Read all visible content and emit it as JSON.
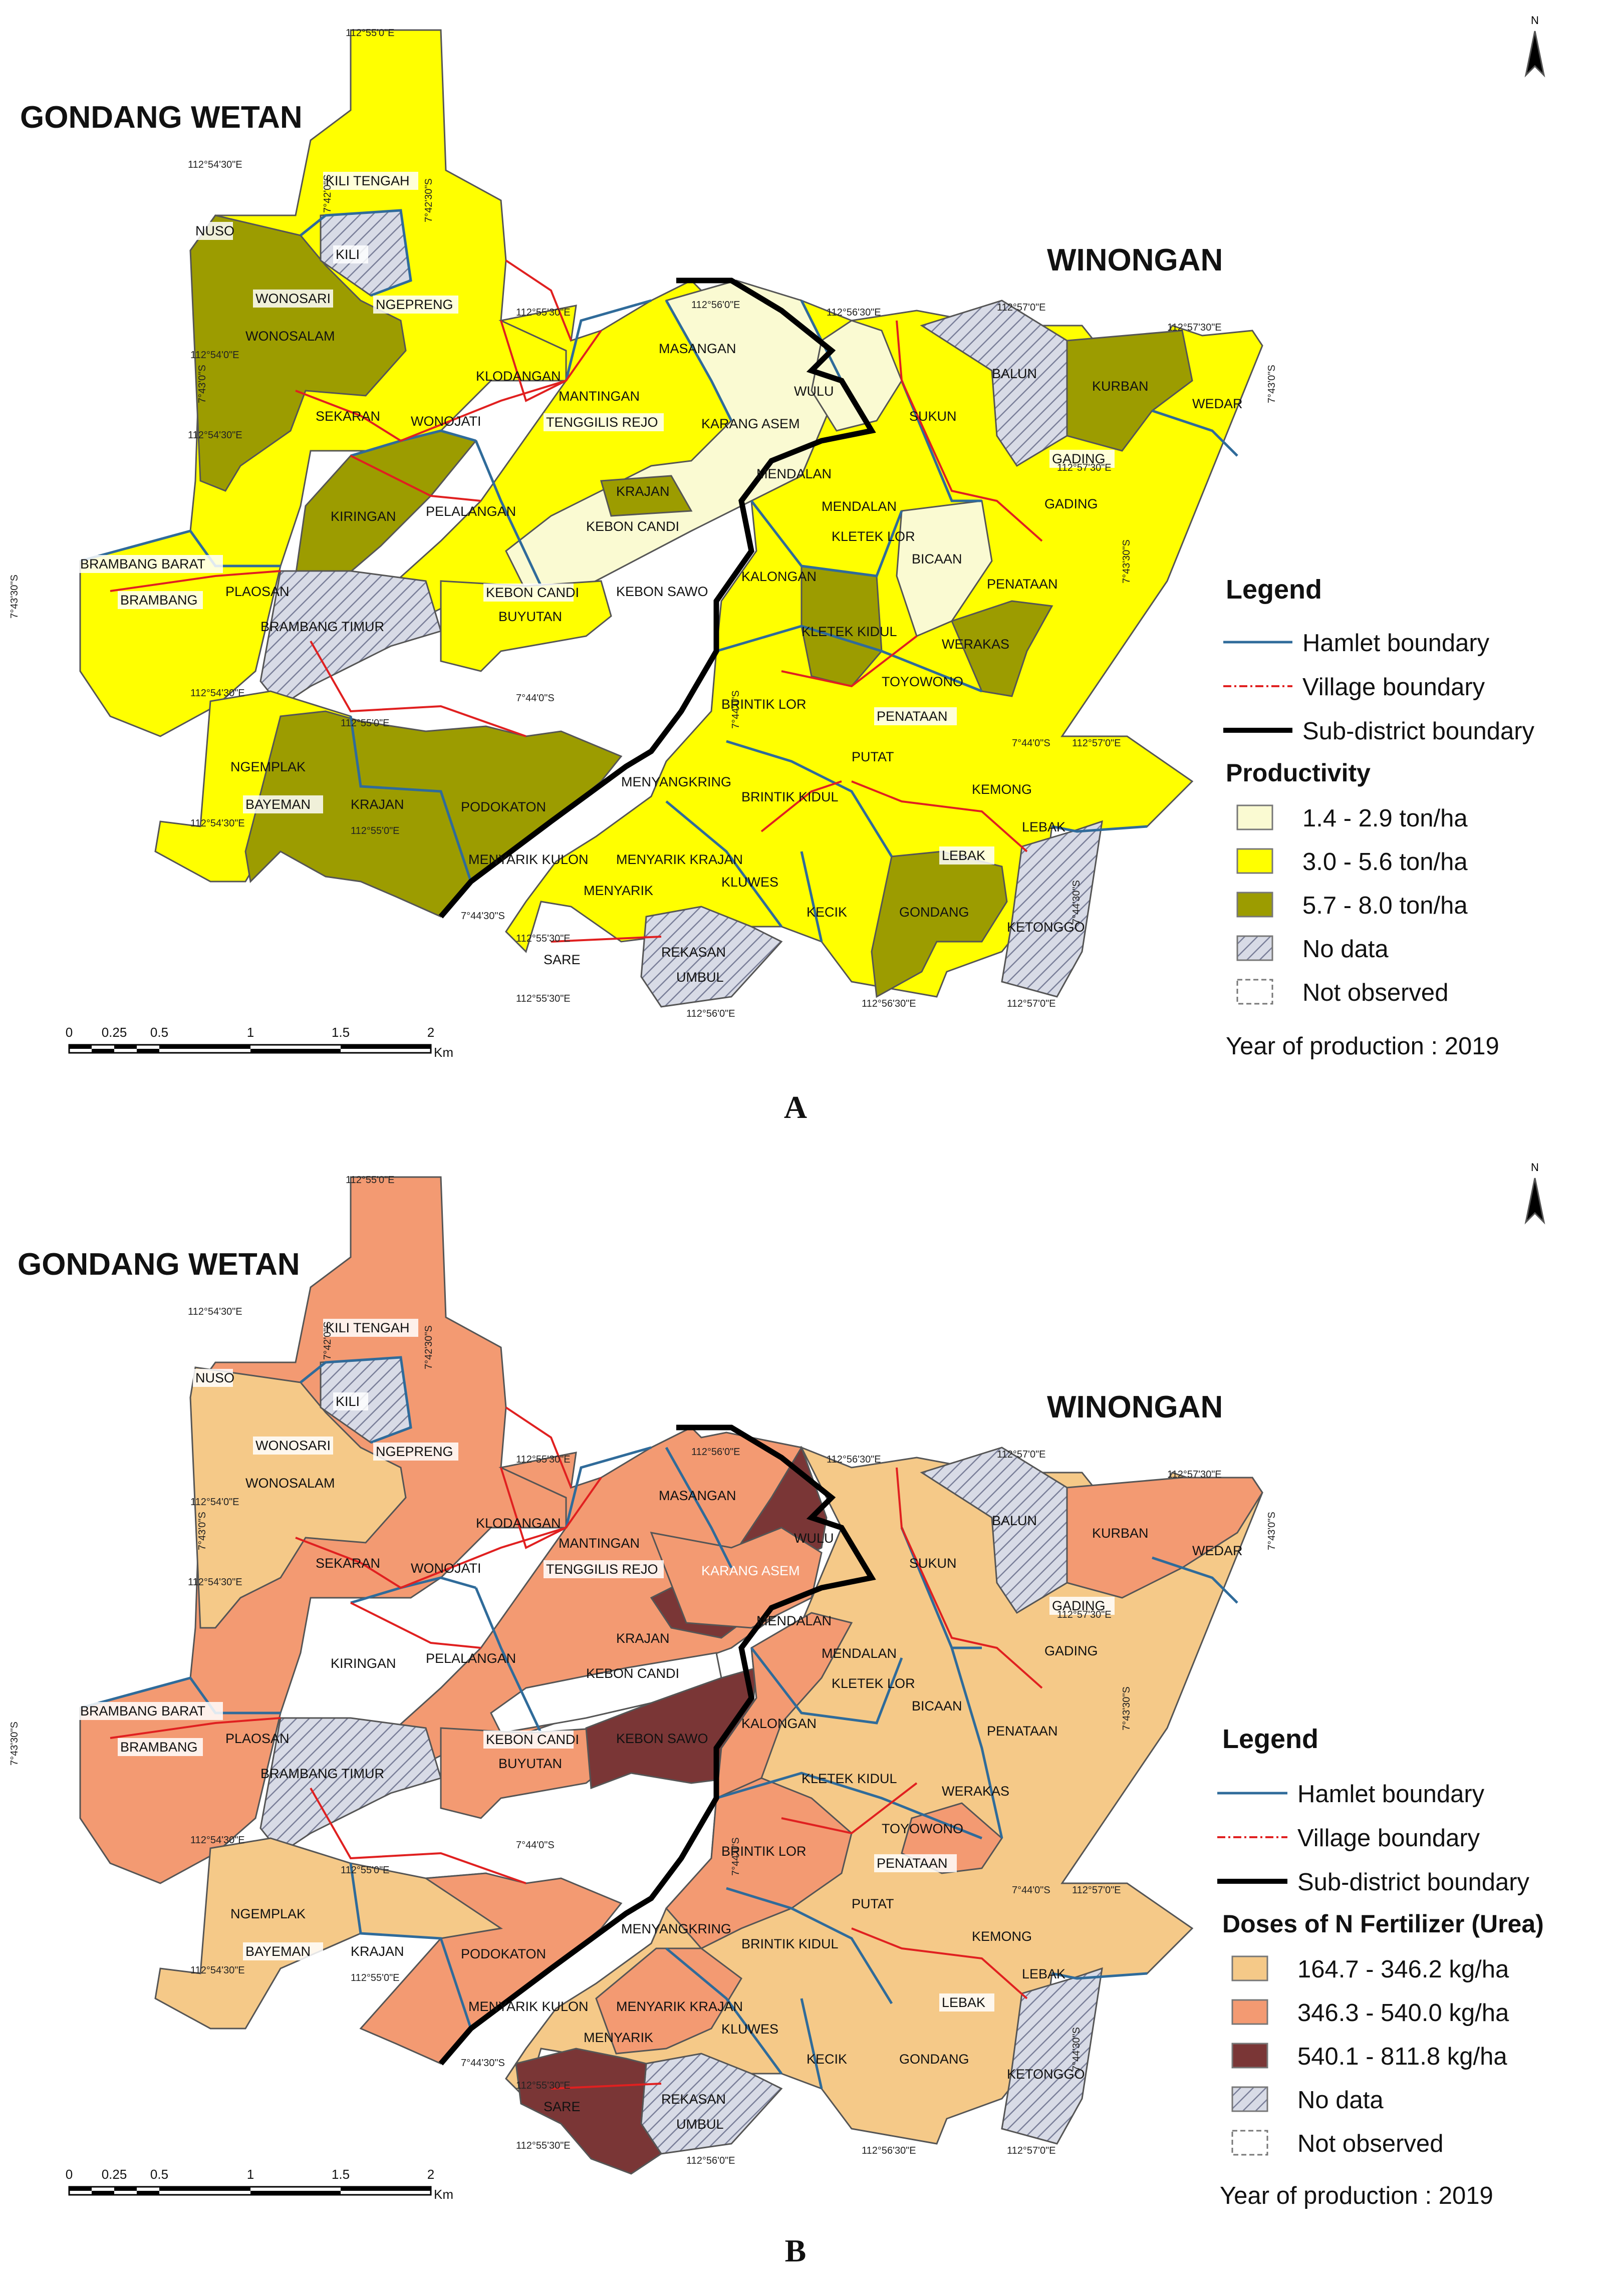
{
  "panels": [
    {
      "id": "A",
      "label": "A",
      "region_left": "GONDANG WETAN",
      "region_right": "WINONGAN",
      "legend": {
        "title": "Legend",
        "boundaries": [
          "Hamlet boundary",
          "Village boundary",
          "Sub-district boundary"
        ],
        "class_title": "Productivity",
        "classes": [
          "1.4 - 2.9 ton/ha",
          "3.0 - 5.6 ton/ha",
          "5.7 - 8.0 ton/ha",
          "No data",
          "Not observed"
        ],
        "year": "Year of production : 2019"
      },
      "colors": {
        "low": "#fafad2",
        "mid": "#ffff00",
        "high": "#9c9c00"
      }
    },
    {
      "id": "B",
      "label": "B",
      "region_left": "GONDANG WETAN",
      "region_right": "WINONGAN",
      "legend": {
        "title": "Legend",
        "boundaries": [
          "Hamlet boundary",
          "Village boundary",
          "Sub-district boundary"
        ],
        "class_title": "Doses of N Fertilizer (Urea)",
        "classes": [
          "164.7 - 346.2 kg/ha",
          "346.3 - 540.0 kg/ha",
          "540.1 - 811.8 kg/ha",
          "No data",
          "Not observed"
        ],
        "year": "Year of production : 2019"
      },
      "colors": {
        "low": "#f5c988",
        "mid": "#f39a72",
        "high": "#7a3636"
      }
    }
  ],
  "north": "N",
  "scale": {
    "ticks": [
      "0",
      "0.25",
      "0.5",
      "1",
      "1.5",
      "2"
    ],
    "unit": "Km"
  },
  "coords": [
    "112°55'0\"E",
    "112°54'30\"E",
    "7°42'0\"S",
    "7°42'30\"S",
    "112°54'0\"E",
    "112°55'30\"E",
    "112°56'0\"E",
    "112°56'30\"E",
    "112°57'0\"E",
    "112°57'30\"E",
    "7°43'0\"S",
    "7°43'30\"S",
    "7°44'0\"S",
    "7°44'30\"S"
  ],
  "colors_common": {
    "hamlet": "#2f6b9a",
    "village": "#e02020",
    "subdistrict": "#000000",
    "nodata_fill": "#d8dbe6",
    "nodata_hatch": "#7a7f99"
  },
  "hamlets": [
    "KILI TENGAH",
    "NUSO",
    "KILI",
    "WONOSARI",
    "NGEPRENG",
    "WONOSALAM",
    "SEKARAN",
    "WONOJATI",
    "KLODANGAN",
    "MANTINGAN",
    "MASANGAN",
    "TENGGILIS REJO",
    "KARANG ASEM",
    "WULU",
    "SUKUN",
    "BALUN",
    "KURBAN",
    "WEDAR",
    "GADING",
    "KIRINGAN",
    "PELALANGAN",
    "KRAJAN",
    "KEBON CANDI",
    "MENDALAN",
    "KLETEK LOR",
    "BICAAN",
    "BRAMBANG BARAT",
    "BRAMBANG",
    "PLAOSAN",
    "BRAMBANG TIMUR",
    "BUYUTAN",
    "KEBON SAWO",
    "KALONGAN",
    "KLETEK KIDUL",
    "PENATAAN",
    "WERAKAS",
    "TOYOWONO",
    "BRINTIK LOR",
    "BRINTIK KIDUL",
    "PUTAT",
    "NGEMPLAK",
    "BAYEMAN",
    "PODOKATON",
    "MENYANGKRING",
    "KEMONG",
    "LEBAK",
    "MENYARIK KULON",
    "MENYARIK KRAJAN",
    "MENYARIK",
    "KLUWES",
    "KECIK",
    "GONDANG",
    "KETONGGO",
    "SARE",
    "REKASAN",
    "UMBUL"
  ]
}
